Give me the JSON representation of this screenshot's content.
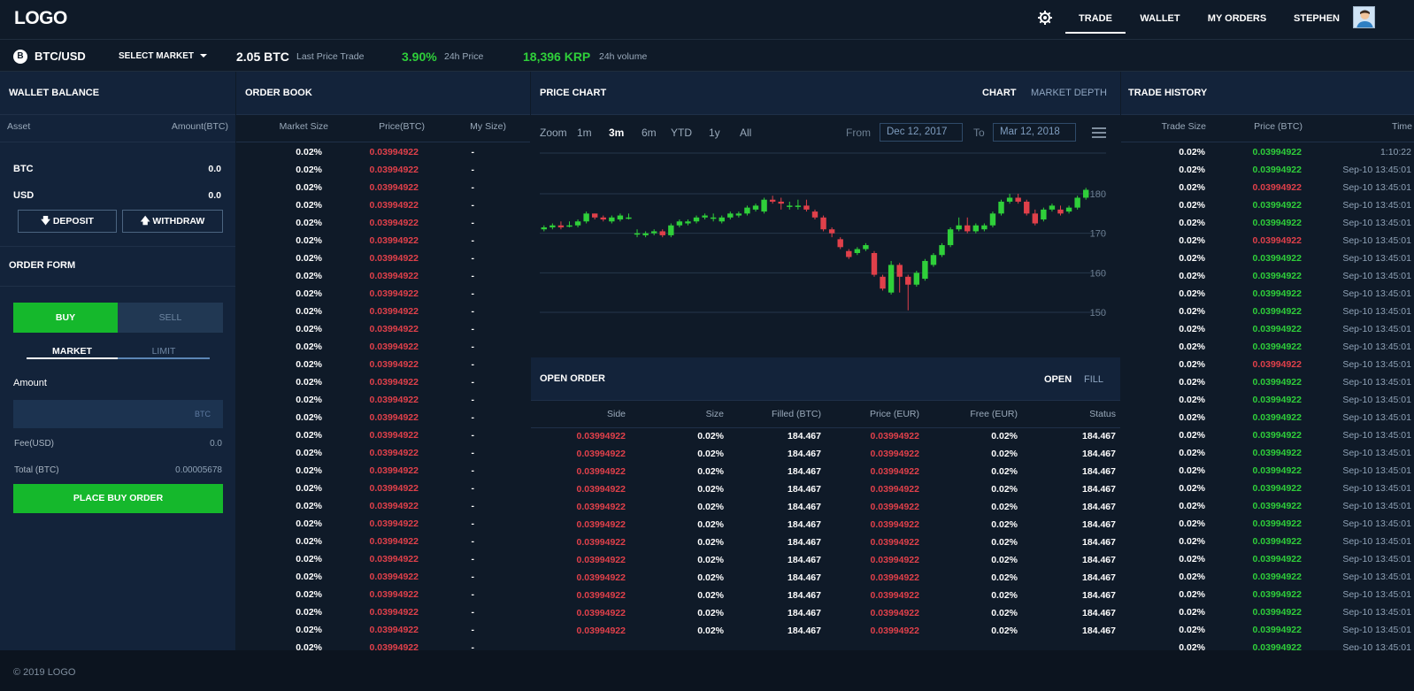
{
  "header": {
    "logo": "LOGO",
    "nav": [
      {
        "label": "TRADE"
      },
      {
        "label": "WALLET"
      },
      {
        "label": "MY ORDERS"
      },
      {
        "label": "STEPHEN"
      }
    ]
  },
  "market": {
    "pair": "BTC/USD",
    "coin_symbol": "B",
    "select_label": "SELECT MARKET",
    "last_price": "2.05 BTC",
    "last_price_label": "Last Price Trade",
    "change": "3.90%",
    "change_label": "24h Price",
    "volume": "18,396 KRP",
    "volume_label": "24h volume",
    "accent": "#2fcf3a"
  },
  "wallet": {
    "title": "WALLET BALANCE",
    "col_asset": "Asset",
    "col_amount": "Amount(BTC)",
    "assets": [
      {
        "name": "BTC",
        "amount": "0.0"
      },
      {
        "name": "USD",
        "amount": "0.0"
      }
    ],
    "deposit": "DEPOSIT",
    "withdraw": "WITHDRAW"
  },
  "order_form": {
    "title": "ORDER FORM",
    "buy": "BUY",
    "sell": "SELL",
    "market_tab": "MARKET",
    "limit_tab": "LIMIT",
    "amount_label": "Amount",
    "amount_unit": "BTC",
    "amount_value": "",
    "fee_label": "Fee(USD)",
    "fee_value": "0.0",
    "total_label": "Total (BTC)",
    "total_value": "0.00005678",
    "submit": "PLACE BUY ORDER",
    "buy_color": "#15b82c"
  },
  "order_book": {
    "title": "ORDER BOOK",
    "columns": [
      "Market Size",
      "Price(BTC)",
      "My Size)"
    ],
    "row": {
      "size": "0.02%",
      "price": "0.03994922",
      "mine": "-"
    },
    "row_count": 29
  },
  "price_chart": {
    "title": "PRICE CHART",
    "tab_chart": "CHART",
    "tab_depth": "MARKET DEPTH",
    "zoom_label": "Zoom",
    "zoom_options": [
      "1m",
      "3m",
      "6m",
      "YTD",
      "1y",
      "All"
    ],
    "zoom_selected": "3m",
    "from_label": "From",
    "from_value": "Dec 12, 2017",
    "to_label": "To",
    "to_value": "Mar 12, 2018",
    "y_ticks": [
      "180",
      "170",
      "160",
      "150"
    ]
  },
  "chart_data": {
    "type": "candlestick",
    "y_ticks": [
      150,
      160,
      170,
      180
    ],
    "ylim": [
      148,
      190
    ],
    "candles": [
      {
        "o": 171,
        "c": 171.5,
        "h": 172,
        "l": 170.5
      },
      {
        "o": 171.5,
        "c": 172,
        "h": 172.5,
        "l": 171
      },
      {
        "o": 172,
        "c": 171.5,
        "h": 173,
        "l": 171
      },
      {
        "o": 172,
        "c": 172,
        "h": 173,
        "l": 171.5
      },
      {
        "o": 172,
        "c": 173,
        "h": 173.5,
        "l": 171.5
      },
      {
        "o": 173,
        "c": 175,
        "h": 175.5,
        "l": 172.5
      },
      {
        "o": 175,
        "c": 174,
        "h": 175,
        "l": 173.5
      },
      {
        "o": 174,
        "c": 173.5,
        "h": 174.5,
        "l": 173
      },
      {
        "o": 173,
        "c": 174,
        "h": 174.5,
        "l": 172.5
      },
      {
        "o": 173.5,
        "c": 174.5,
        "h": 175,
        "l": 173
      },
      {
        "o": 174,
        "c": 174,
        "h": 175,
        "l": 173.5
      },
      {
        "o": 170,
        "c": 170,
        "h": 171,
        "l": 169
      },
      {
        "o": 169.5,
        "c": 170,
        "h": 170.5,
        "l": 169
      },
      {
        "o": 170,
        "c": 170.5,
        "h": 171,
        "l": 169.5
      },
      {
        "o": 170.5,
        "c": 169.5,
        "h": 171,
        "l": 169
      },
      {
        "o": 169.5,
        "c": 172,
        "h": 172.5,
        "l": 169
      },
      {
        "o": 172,
        "c": 173,
        "h": 173.5,
        "l": 171.5
      },
      {
        "o": 172.5,
        "c": 173,
        "h": 173.5,
        "l": 172
      },
      {
        "o": 173,
        "c": 174,
        "h": 174.5,
        "l": 172.5
      },
      {
        "o": 174,
        "c": 174.5,
        "h": 175,
        "l": 173.5
      },
      {
        "o": 174,
        "c": 174,
        "h": 175,
        "l": 173
      },
      {
        "o": 173,
        "c": 174,
        "h": 174.5,
        "l": 172.5
      },
      {
        "o": 174,
        "c": 175,
        "h": 175.5,
        "l": 173.5
      },
      {
        "o": 174.5,
        "c": 175,
        "h": 175.5,
        "l": 174
      },
      {
        "o": 175,
        "c": 176.5,
        "h": 177,
        "l": 174.5
      },
      {
        "o": 176,
        "c": 177,
        "h": 177.5,
        "l": 175.5
      },
      {
        "o": 175.5,
        "c": 178.5,
        "h": 179,
        "l": 175
      },
      {
        "o": 178.5,
        "c": 178,
        "h": 179.5,
        "l": 177.5
      },
      {
        "o": 178,
        "c": 177.5,
        "h": 179,
        "l": 176
      },
      {
        "o": 177,
        "c": 177,
        "h": 178,
        "l": 176
      },
      {
        "o": 177,
        "c": 177,
        "h": 178.5,
        "l": 176
      },
      {
        "o": 177,
        "c": 176,
        "h": 178.5,
        "l": 175.5
      },
      {
        "o": 175.5,
        "c": 174,
        "h": 176,
        "l": 173.5
      },
      {
        "o": 174,
        "c": 171,
        "h": 174.5,
        "l": 170.5
      },
      {
        "o": 171,
        "c": 170,
        "h": 171.5,
        "l": 169
      },
      {
        "o": 168.5,
        "c": 166.5,
        "h": 169,
        "l": 166
      },
      {
        "o": 165.5,
        "c": 164,
        "h": 166,
        "l": 163.5
      },
      {
        "o": 165,
        "c": 166,
        "h": 166.5,
        "l": 164.5
      },
      {
        "o": 166,
        "c": 167,
        "h": 167.5,
        "l": 165.5
      },
      {
        "o": 165,
        "c": 159.5,
        "h": 165.5,
        "l": 159
      },
      {
        "o": 159,
        "c": 156,
        "h": 159.5,
        "l": 155.5
      },
      {
        "o": 155,
        "c": 162,
        "h": 163,
        "l": 154.5
      },
      {
        "o": 162,
        "c": 159,
        "h": 162.5,
        "l": 155
      },
      {
        "o": 159,
        "c": 157,
        "h": 159.5,
        "l": 150.5
      },
      {
        "o": 157,
        "c": 160,
        "h": 160.5,
        "l": 156.5
      },
      {
        "o": 158.5,
        "c": 163,
        "h": 163.5,
        "l": 158
      },
      {
        "o": 162,
        "c": 164.5,
        "h": 165,
        "l": 161.5
      },
      {
        "o": 164.5,
        "c": 167,
        "h": 167.5,
        "l": 164
      },
      {
        "o": 167,
        "c": 171,
        "h": 171.5,
        "l": 166.5
      },
      {
        "o": 171,
        "c": 172,
        "h": 174,
        "l": 170.5
      },
      {
        "o": 172,
        "c": 170.5,
        "h": 174,
        "l": 170
      },
      {
        "o": 170.5,
        "c": 172,
        "h": 172.5,
        "l": 170
      },
      {
        "o": 171,
        "c": 172,
        "h": 172.5,
        "l": 170.5
      },
      {
        "o": 172,
        "c": 175,
        "h": 175.5,
        "l": 171.5
      },
      {
        "o": 175,
        "c": 178,
        "h": 178.5,
        "l": 174.5
      },
      {
        "o": 178,
        "c": 179,
        "h": 180,
        "l": 177.5
      },
      {
        "o": 179,
        "c": 178,
        "h": 180,
        "l": 177.5
      },
      {
        "o": 178,
        "c": 175,
        "h": 178.5,
        "l": 174.5
      },
      {
        "o": 175,
        "c": 172.5,
        "h": 176,
        "l": 172
      },
      {
        "o": 173.5,
        "c": 176,
        "h": 176.5,
        "l": 173
      },
      {
        "o": 176,
        "c": 177,
        "h": 177.5,
        "l": 175.5
      },
      {
        "o": 176,
        "c": 175,
        "h": 177,
        "l": 174.5
      },
      {
        "o": 175.5,
        "c": 176.5,
        "h": 177,
        "l": 175
      },
      {
        "o": 176.5,
        "c": 179,
        "h": 179.5,
        "l": 176
      },
      {
        "o": 179,
        "c": 181,
        "h": 181.5,
        "l": 178.5
      }
    ]
  },
  "open_order": {
    "title": "OPEN ORDER",
    "tab_open": "OPEN",
    "tab_fill": "FILL",
    "columns": [
      "Side",
      "Size",
      "Filled (BTC)",
      "Price (EUR)",
      "Free (EUR)",
      "Status"
    ],
    "row": {
      "side": "0.03994922",
      "size": "0.02%",
      "filled": "184.467",
      "price": "0.03994922",
      "free": "0.02%",
      "status": "184.467"
    },
    "row_count": 12
  },
  "trade_history": {
    "title": "TRADE HISTORY",
    "columns": [
      "Trade Size",
      "Price (BTC)",
      "Time"
    ],
    "first_time": "1:10:22",
    "time": "Sep-10 13:45:01",
    "size": "0.02%",
    "price": "0.03994922",
    "red_rows": [
      2,
      5,
      12
    ],
    "row_count": 29
  },
  "footer": {
    "copyright": "© 2019 LOGO"
  }
}
